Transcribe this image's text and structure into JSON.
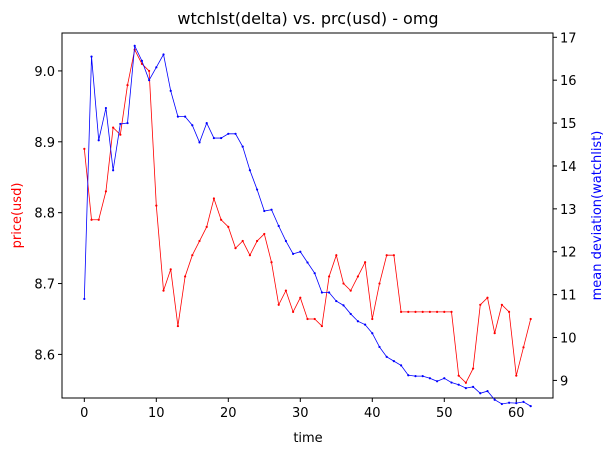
{
  "chart_data": {
    "type": "line",
    "title": "wtchlst(delta) vs. prc(usd) - omg",
    "xlabel": "time",
    "xlim": [
      -3.1,
      65.1
    ],
    "xticks": [
      0,
      10,
      20,
      30,
      40,
      50,
      60
    ],
    "grid": false,
    "legend": "none",
    "x": [
      0,
      1,
      2,
      3,
      4,
      5,
      6,
      7,
      8,
      9,
      10,
      11,
      12,
      13,
      14,
      15,
      16,
      17,
      18,
      19,
      20,
      21,
      22,
      23,
      24,
      25,
      26,
      27,
      28,
      29,
      30,
      31,
      32,
      33,
      34,
      35,
      36,
      37,
      38,
      39,
      40,
      41,
      42,
      43,
      44,
      45,
      46,
      47,
      48,
      49,
      50,
      51,
      52,
      53,
      54,
      55,
      56,
      57,
      58,
      59,
      60,
      61,
      62
    ],
    "left_axis": {
      "label": "price(usd)",
      "color": "#ff0000",
      "ylim": [
        8.5385,
        9.0535
      ],
      "ticks": [
        "8.6",
        "8.7",
        "8.8",
        "8.9",
        "9.0"
      ],
      "tick_values": [
        8.6,
        8.7,
        8.8,
        8.9,
        9.0
      ]
    },
    "right_axis": {
      "label": "mean deviation(watchlist)",
      "color": "#0000ff",
      "ylim": [
        8.59,
        17.1
      ],
      "ticks": [
        "9",
        "10",
        "11",
        "12",
        "13",
        "14",
        "15",
        "16",
        "17"
      ],
      "tick_values": [
        9,
        10,
        11,
        12,
        13,
        14,
        15,
        16,
        17
      ]
    },
    "series": [
      {
        "axis": "left",
        "color": "#ff0000",
        "values": [
          8.89,
          8.79,
          8.79,
          8.83,
          8.92,
          8.91,
          8.98,
          9.03,
          9.01,
          9.0,
          8.81,
          8.69,
          8.72,
          8.64,
          8.71,
          8.74,
          8.76,
          8.78,
          8.82,
          8.79,
          8.78,
          8.75,
          8.76,
          8.74,
          8.76,
          8.77,
          8.73,
          8.67,
          8.69,
          8.66,
          8.68,
          8.65,
          8.65,
          8.64,
          8.71,
          8.74,
          8.7,
          8.69,
          8.71,
          8.73,
          8.65,
          8.7,
          8.74,
          8.74,
          8.66,
          8.66,
          8.66,
          8.66,
          8.66,
          8.66,
          8.66,
          8.66,
          8.57,
          8.56,
          8.58,
          8.67,
          8.68,
          8.63,
          8.67,
          8.66,
          8.57,
          8.61,
          8.65
        ]
      },
      {
        "axis": "right",
        "color": "#0000ff",
        "values": [
          10.9,
          16.55,
          14.6,
          15.35,
          13.9,
          14.98,
          15.0,
          16.8,
          16.45,
          16.0,
          16.3,
          16.6,
          15.75,
          15.15,
          15.15,
          14.95,
          14.55,
          15.0,
          14.65,
          14.65,
          14.75,
          14.75,
          14.45,
          13.9,
          13.45,
          12.95,
          12.98,
          12.6,
          12.25,
          11.95,
          12.0,
          11.75,
          11.5,
          11.05,
          11.05,
          10.85,
          10.75,
          10.55,
          10.38,
          10.3,
          10.1,
          9.78,
          9.55,
          9.45,
          9.35,
          9.12,
          9.1,
          9.1,
          9.05,
          8.98,
          9.05,
          8.95,
          8.9,
          8.82,
          8.85,
          8.7,
          8.75,
          8.55,
          8.45,
          8.48,
          8.47,
          8.5,
          8.4
        ]
      }
    ]
  }
}
